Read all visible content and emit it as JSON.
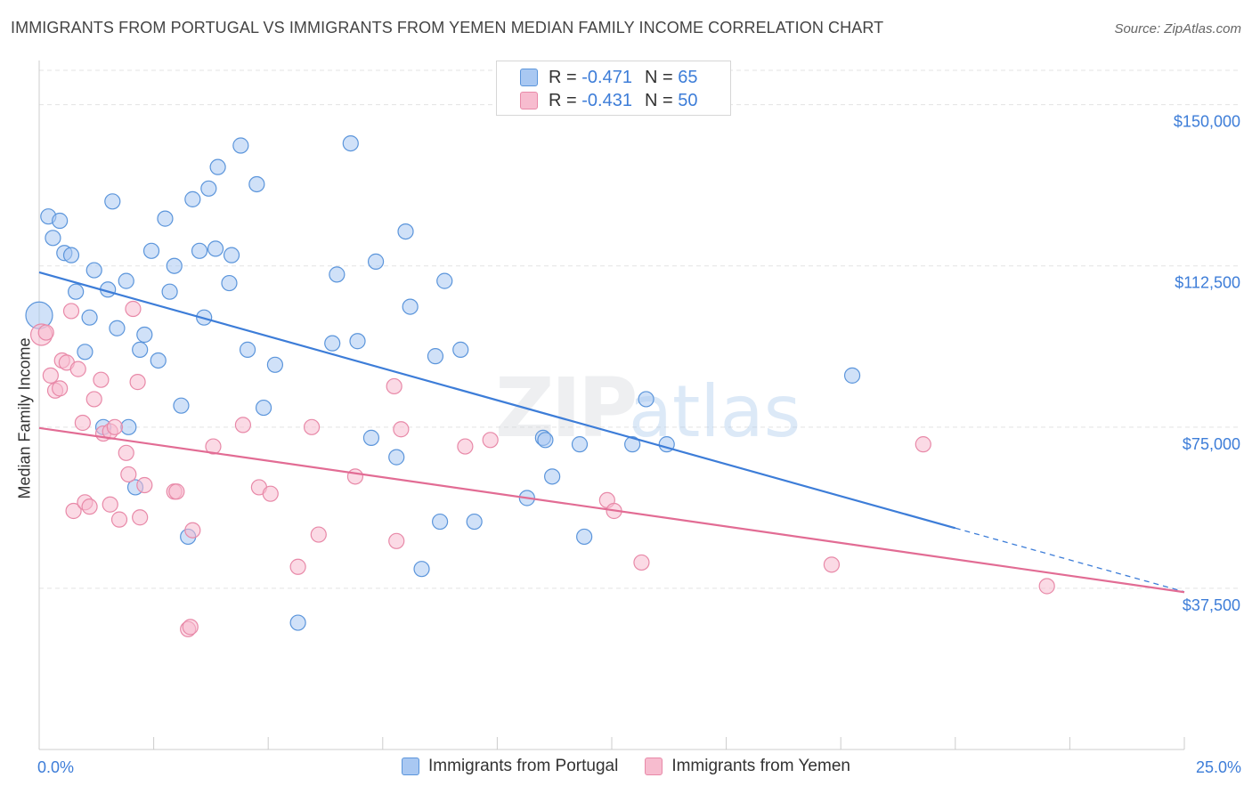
{
  "header": {
    "title": "IMMIGRANTS FROM PORTUGAL VS IMMIGRANTS FROM YEMEN MEDIAN FAMILY INCOME CORRELATION CHART",
    "source": "Source: ZipAtlas.com"
  },
  "watermark": {
    "zip": "ZIP",
    "atlas": "atlas"
  },
  "inset_legend": {
    "rows": [
      {
        "r_label": "R = ",
        "r_value": "-0.471",
        "n_label": "N = ",
        "n_value": "65",
        "color": "#a9c8f2"
      },
      {
        "r_label": "R = ",
        "r_value": "-0.431",
        "n_label": "N = ",
        "n_value": "50",
        "color": "#f7bccf"
      }
    ]
  },
  "bottom_legend": {
    "items": [
      {
        "label": "Immigrants from Portugal",
        "color": "#a9c8f2"
      },
      {
        "label": "Immigrants from Yemen",
        "color": "#f7bccf"
      }
    ]
  },
  "colors": {
    "blue_fill": "#a9c8f2",
    "blue_stroke": "#5b95db",
    "blue_line": "#3d7dd8",
    "pink_fill": "#f7bccf",
    "pink_stroke": "#e889a8",
    "pink_line": "#e26c94",
    "grid": "#e3e3e3",
    "axis_label": "#3d7dd8"
  },
  "chart_data": {
    "type": "scatter",
    "title": "IMMIGRANTS FROM PORTUGAL VS IMMIGRANTS FROM YEMEN MEDIAN FAMILY INCOME CORRELATION CHART",
    "xlabel": "",
    "ylabel": "Median Family Income",
    "x_tick_labels": {
      "min": "0.0%",
      "max": "25.0%"
    },
    "xlim": [
      0,
      25
    ],
    "ylim": [
      0,
      158000
    ],
    "y_ticks": [
      {
        "value": 37500,
        "label": "$37,500"
      },
      {
        "value": 75000,
        "label": "$75,000"
      },
      {
        "value": 112500,
        "label": "$112,500"
      },
      {
        "value": 150000,
        "label": "$150,000"
      }
    ],
    "series": [
      {
        "name": "Immigrants from Portugal",
        "r": -0.471,
        "n": 65,
        "trend": {
          "x0": 0,
          "y0": 111000,
          "x1": 20,
          "y1": 51500,
          "dash_x1": 25,
          "dash_y1": 36700
        },
        "points": [
          {
            "x": 0.0,
            "y": 101000,
            "size": 30
          },
          {
            "x": 0.2,
            "y": 124000
          },
          {
            "x": 0.45,
            "y": 123000
          },
          {
            "x": 0.3,
            "y": 119000
          },
          {
            "x": 0.55,
            "y": 115500
          },
          {
            "x": 0.7,
            "y": 115000
          },
          {
            "x": 1.2,
            "y": 111500
          },
          {
            "x": 0.8,
            "y": 106500
          },
          {
            "x": 1.5,
            "y": 107000
          },
          {
            "x": 1.9,
            "y": 109000
          },
          {
            "x": 1.1,
            "y": 100500
          },
          {
            "x": 1.7,
            "y": 98000
          },
          {
            "x": 2.3,
            "y": 96500
          },
          {
            "x": 1.0,
            "y": 92500
          },
          {
            "x": 2.2,
            "y": 93000
          },
          {
            "x": 2.6,
            "y": 90500
          },
          {
            "x": 1.6,
            "y": 127500
          },
          {
            "x": 2.75,
            "y": 123500
          },
          {
            "x": 2.45,
            "y": 116000
          },
          {
            "x": 2.95,
            "y": 112500
          },
          {
            "x": 2.85,
            "y": 106500
          },
          {
            "x": 3.35,
            "y": 128000
          },
          {
            "x": 3.7,
            "y": 130500
          },
          {
            "x": 3.9,
            "y": 135500
          },
          {
            "x": 4.4,
            "y": 140500
          },
          {
            "x": 4.75,
            "y": 131500
          },
          {
            "x": 3.5,
            "y": 116000
          },
          {
            "x": 3.85,
            "y": 116500
          },
          {
            "x": 4.2,
            "y": 115000
          },
          {
            "x": 4.15,
            "y": 108500
          },
          {
            "x": 3.6,
            "y": 100500
          },
          {
            "x": 3.1,
            "y": 80000
          },
          {
            "x": 4.55,
            "y": 93000
          },
          {
            "x": 5.15,
            "y": 89500
          },
          {
            "x": 4.9,
            "y": 79500
          },
          {
            "x": 1.4,
            "y": 75000
          },
          {
            "x": 1.95,
            "y": 75000
          },
          {
            "x": 2.1,
            "y": 61000
          },
          {
            "x": 3.25,
            "y": 49500
          },
          {
            "x": 5.65,
            "y": 29500
          },
          {
            "x": 6.4,
            "y": 94500
          },
          {
            "x": 6.5,
            "y": 110500
          },
          {
            "x": 6.8,
            "y": 141000
          },
          {
            "x": 6.95,
            "y": 95000
          },
          {
            "x": 7.35,
            "y": 113500
          },
          {
            "x": 7.25,
            "y": 72500
          },
          {
            "x": 8.0,
            "y": 120500
          },
          {
            "x": 8.1,
            "y": 103000
          },
          {
            "x": 7.8,
            "y": 68000
          },
          {
            "x": 8.65,
            "y": 91500
          },
          {
            "x": 8.75,
            "y": 53000
          },
          {
            "x": 8.35,
            "y": 42000
          },
          {
            "x": 8.85,
            "y": 109000
          },
          {
            "x": 9.2,
            "y": 93000
          },
          {
            "x": 9.5,
            "y": 53000
          },
          {
            "x": 10.65,
            "y": 58500
          },
          {
            "x": 11.0,
            "y": 72500
          },
          {
            "x": 11.05,
            "y": 72000
          },
          {
            "x": 11.2,
            "y": 63500
          },
          {
            "x": 11.8,
            "y": 71000
          },
          {
            "x": 11.9,
            "y": 49500
          },
          {
            "x": 12.95,
            "y": 71000
          },
          {
            "x": 13.25,
            "y": 81500
          },
          {
            "x": 13.7,
            "y": 71000
          },
          {
            "x": 17.75,
            "y": 87000
          }
        ]
      },
      {
        "name": "Immigrants from Yemen",
        "r": -0.431,
        "n": 50,
        "trend": {
          "x0": 0,
          "y0": 74800,
          "x1": 25,
          "y1": 36600
        },
        "points": [
          {
            "x": 0.05,
            "y": 96500,
            "size": 24
          },
          {
            "x": 0.15,
            "y": 97000
          },
          {
            "x": 0.25,
            "y": 87000
          },
          {
            "x": 0.35,
            "y": 83500
          },
          {
            "x": 0.45,
            "y": 84000
          },
          {
            "x": 0.5,
            "y": 90500
          },
          {
            "x": 0.6,
            "y": 90000
          },
          {
            "x": 0.7,
            "y": 102000
          },
          {
            "x": 0.85,
            "y": 88500
          },
          {
            "x": 0.95,
            "y": 76000
          },
          {
            "x": 0.75,
            "y": 55500
          },
          {
            "x": 1.0,
            "y": 57500
          },
          {
            "x": 1.1,
            "y": 56500
          },
          {
            "x": 1.2,
            "y": 81500
          },
          {
            "x": 1.35,
            "y": 86000
          },
          {
            "x": 1.4,
            "y": 73500
          },
          {
            "x": 1.55,
            "y": 74000
          },
          {
            "x": 1.55,
            "y": 57000
          },
          {
            "x": 1.65,
            "y": 75000
          },
          {
            "x": 1.75,
            "y": 53500
          },
          {
            "x": 1.9,
            "y": 69000
          },
          {
            "x": 1.95,
            "y": 64000
          },
          {
            "x": 2.05,
            "y": 102500
          },
          {
            "x": 2.15,
            "y": 85500
          },
          {
            "x": 2.2,
            "y": 54000
          },
          {
            "x": 2.3,
            "y": 61500
          },
          {
            "x": 2.95,
            "y": 60000
          },
          {
            "x": 3.0,
            "y": 60000
          },
          {
            "x": 3.25,
            "y": 28000
          },
          {
            "x": 3.3,
            "y": 28500
          },
          {
            "x": 3.35,
            "y": 51000
          },
          {
            "x": 3.8,
            "y": 70500
          },
          {
            "x": 4.45,
            "y": 75500
          },
          {
            "x": 4.8,
            "y": 61000
          },
          {
            "x": 5.05,
            "y": 59500
          },
          {
            "x": 5.65,
            "y": 42500
          },
          {
            "x": 5.95,
            "y": 75000
          },
          {
            "x": 6.1,
            "y": 50000
          },
          {
            "x": 6.9,
            "y": 63500
          },
          {
            "x": 7.75,
            "y": 84500
          },
          {
            "x": 7.8,
            "y": 48500
          },
          {
            "x": 7.9,
            "y": 74500
          },
          {
            "x": 9.3,
            "y": 70500
          },
          {
            "x": 9.85,
            "y": 72000
          },
          {
            "x": 12.4,
            "y": 58000
          },
          {
            "x": 12.55,
            "y": 55500
          },
          {
            "x": 13.15,
            "y": 43500
          },
          {
            "x": 17.3,
            "y": 43000
          },
          {
            "x": 19.3,
            "y": 71000
          },
          {
            "x": 22.0,
            "y": 38000
          }
        ]
      }
    ]
  }
}
